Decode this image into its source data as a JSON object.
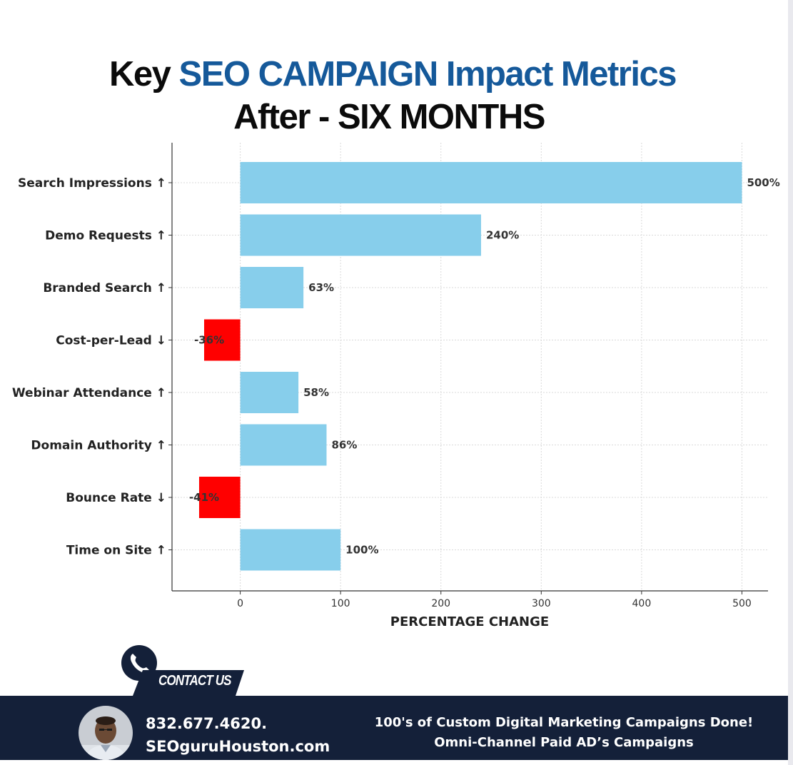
{
  "title": {
    "prefix": "Key",
    "highlight": "SEO CAMPAIGN Impact Metrics",
    "line2": "After - SIX MONTHS"
  },
  "chart_data": {
    "type": "bar",
    "orientation": "horizontal",
    "categories": [
      "Search Impressions ↑",
      "Demo Requests ↑",
      "Branded Search ↑",
      "Cost-per-Lead ↓",
      "Webinar Attendance ↑",
      "Domain Authority ↑",
      "Bounce Rate ↓",
      "Time on Site ↑"
    ],
    "values": [
      500,
      240,
      63,
      -36,
      58,
      86,
      -41,
      100
    ],
    "value_labels": [
      "500%",
      "240%",
      "63%",
      "-36%",
      "58%",
      "86%",
      "-41%",
      "100%"
    ],
    "xlabel": "PERCENTAGE CHANGE",
    "ylabel": "",
    "xlim": [
      -68,
      526
    ],
    "xticks": [
      0,
      100,
      200,
      300,
      400,
      500
    ],
    "grid": true,
    "colors": {
      "positive": "#87ceeb",
      "negative": "#ff0000"
    }
  },
  "contact": {
    "label": "CONTACT US",
    "phone": "832.677.4620.",
    "website": "SEOguruHouston.com"
  },
  "tagline": {
    "line1": "100's of Custom Digital Marketing Campaigns Done!",
    "line2": "Omni-Channel  Paid AD’s Campaigns"
  },
  "colors": {
    "brand_blue": "#15599a",
    "footer_navy": "#142039"
  }
}
